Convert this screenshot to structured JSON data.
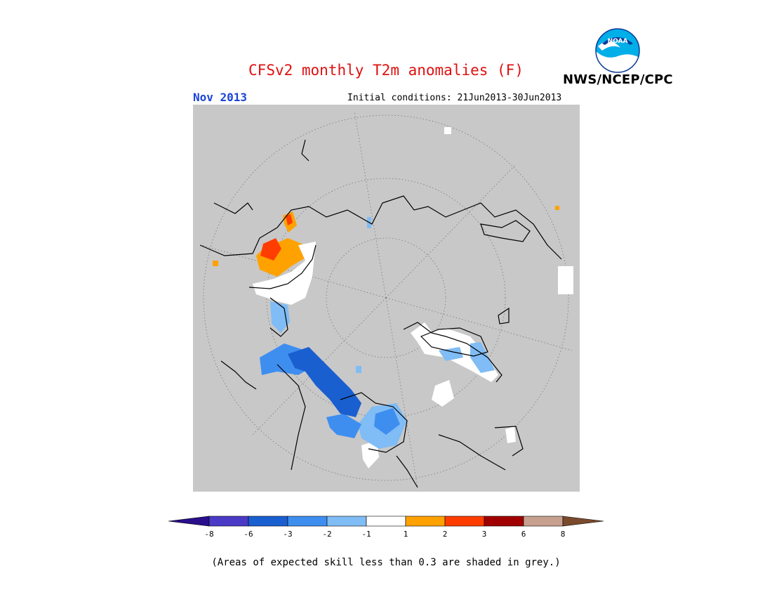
{
  "header": {
    "title": "CFSv2 monthly T2m anomalies (F)",
    "period": "Nov 2013",
    "initial_conditions": "Initial conditions: 21Jun2013-30Jun2013",
    "agency": "NWS/NCEP/CPC",
    "logo_text": "NOAA"
  },
  "colors": {
    "title": "#e01010",
    "period": "#1a44d8",
    "map_background": "#c8c8c8",
    "coastline": "#000000"
  },
  "legend": {
    "ticks": [
      "-8",
      "-6",
      "-3",
      "-2",
      "-1",
      "1",
      "2",
      "3",
      "6",
      "8"
    ],
    "bins": [
      {
        "label": "< -8",
        "color": "#2a0f8c"
      },
      {
        "label": "-8 to -6",
        "color": "#4a3ac6"
      },
      {
        "label": "-6 to -3",
        "color": "#1a5fd0"
      },
      {
        "label": "-3 to -2",
        "color": "#3e8ef0"
      },
      {
        "label": "-2 to -1",
        "color": "#80bcf5"
      },
      {
        "label": "-1 to 1",
        "color": "#ffffff"
      },
      {
        "label": "1 to 2",
        "color": "#ffa200"
      },
      {
        "label": "2 to 3",
        "color": "#ff3d00"
      },
      {
        "label": "3 to 6",
        "color": "#a00000"
      },
      {
        "label": "6 to 8",
        "color": "#c8a090"
      },
      {
        "label": "> 8",
        "color": "#7a4a2c"
      }
    ]
  },
  "footnote": "(Areas of expected skill less than 0.3 are shaded in grey.)"
}
